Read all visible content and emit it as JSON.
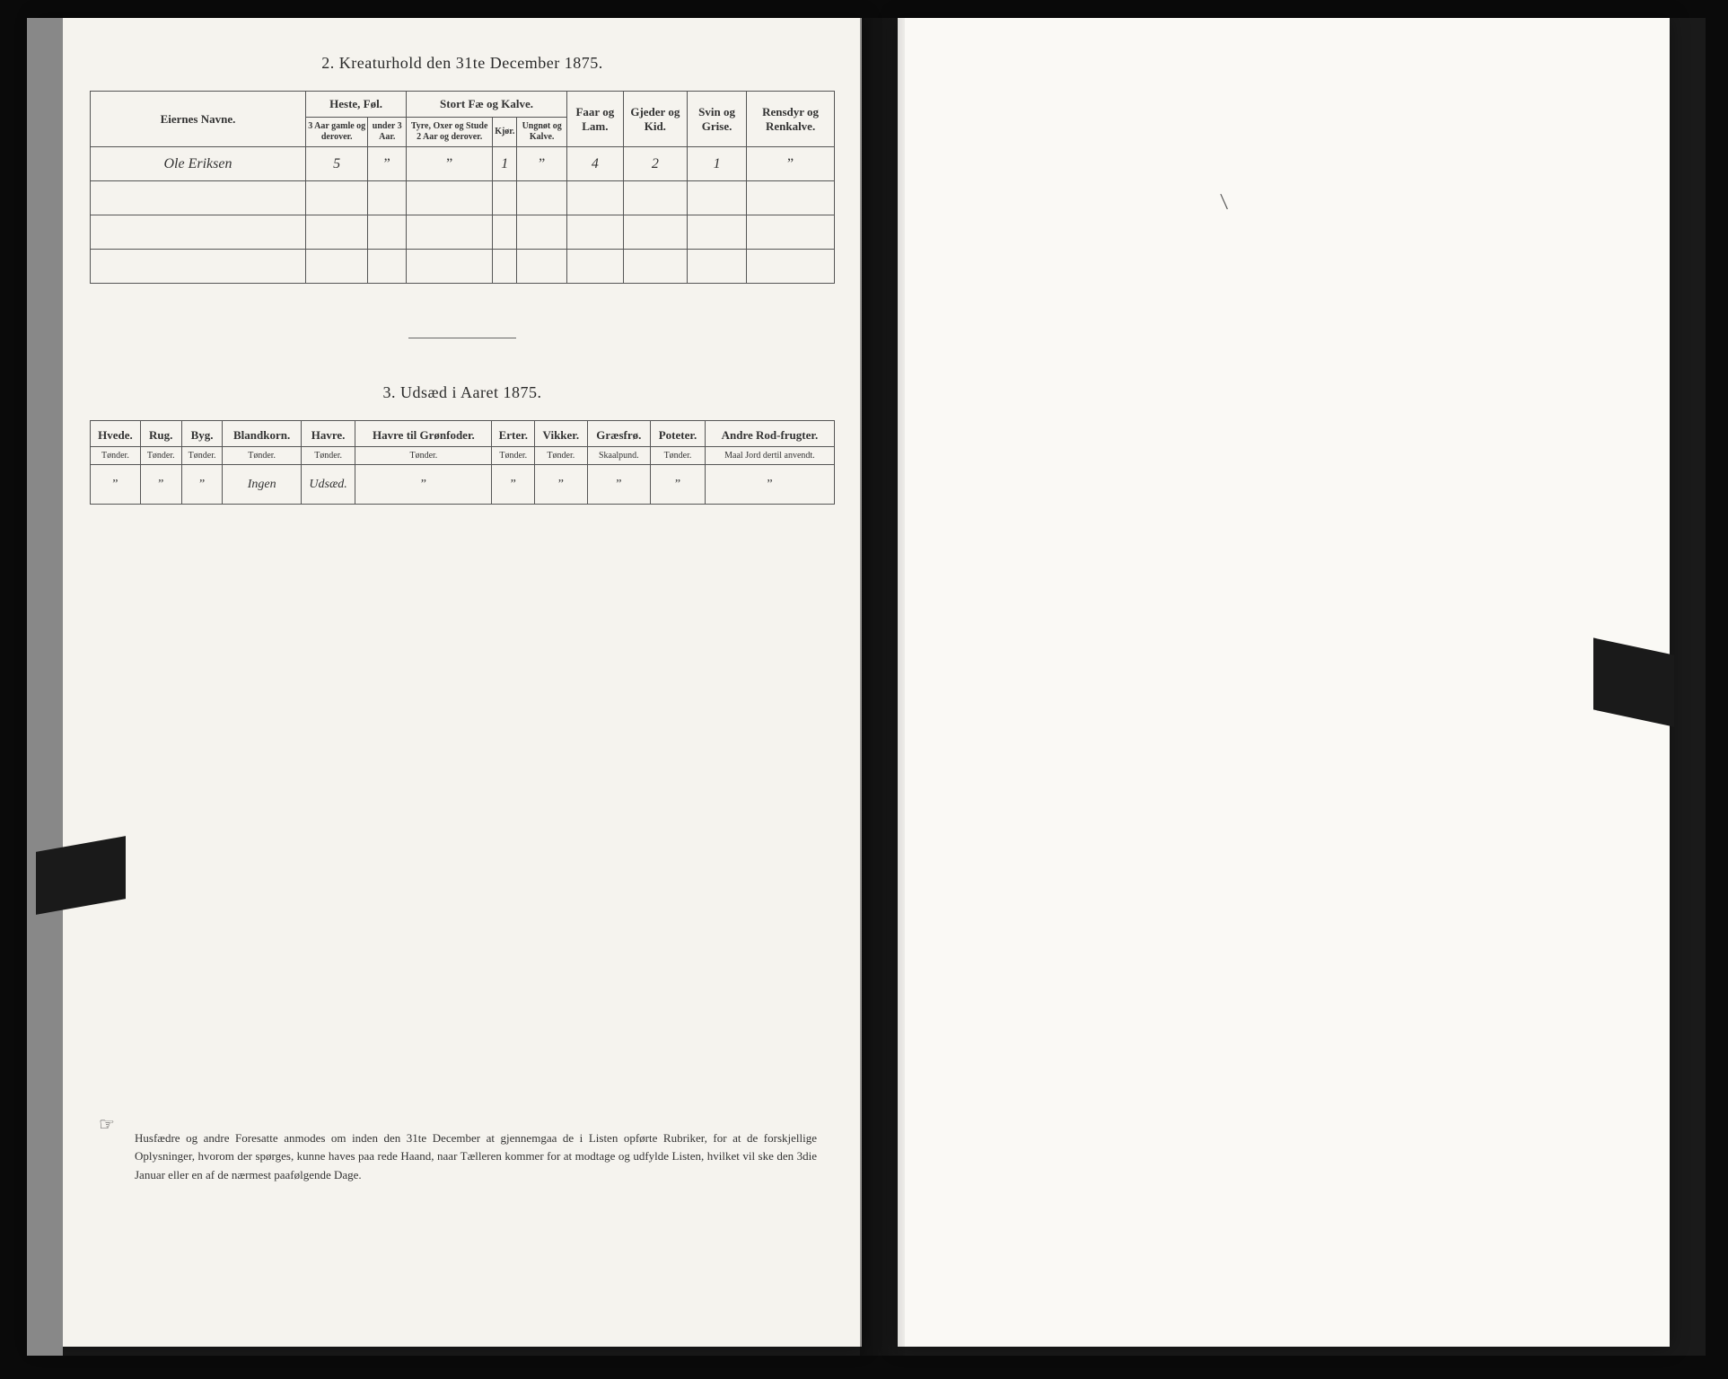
{
  "section2": {
    "title": "2.   Kreaturhold den 31te December 1875.",
    "owner_label": "Eiernes Navne.",
    "groups": {
      "heste": "Heste, Føl.",
      "stort": "Stort Fæ og Kalve.",
      "faar": "Faar og Lam.",
      "gjeder": "Gjeder og Kid.",
      "svin": "Svin og Grise.",
      "rensdyr": "Rensdyr og Renkalve."
    },
    "subheaders": {
      "heste1": "3 Aar gamle og derover.",
      "heste2": "under 3 Aar.",
      "stort1": "Tyre, Oxer og Stude 2 Aar og derover.",
      "stort2": "Kjør.",
      "stort3": "Ungnøt og Kalve."
    },
    "row": {
      "owner": "Ole Eriksen",
      "heste_3aar": "5",
      "heste_u3": "”",
      "tyre": "”",
      "kjor": "1",
      "ungnot": "”",
      "faar": "4",
      "gjeder": "2",
      "svin": "1",
      "rensdyr": "”"
    }
  },
  "section3": {
    "title": "3.   Udsæd i Aaret 1875.",
    "crops": {
      "hvede": "Hvede.",
      "rug": "Rug.",
      "byg": "Byg.",
      "blandkorn": "Blandkorn.",
      "havre": "Havre.",
      "havre_gron": "Havre til Grønfoder.",
      "erter": "Erter.",
      "vikker": "Vikker.",
      "graesfro": "Græsfrø.",
      "poteter": "Poteter.",
      "andre": "Andre Rod-frugter."
    },
    "units": {
      "tonder": "Tønder.",
      "skaalpund": "Skaalpund.",
      "maal": "Maal Jord dertil anvendt."
    },
    "row": {
      "hvede": "”",
      "rug": "”",
      "byg": "”",
      "blandkorn": "Ingen",
      "havre": "Udsæd.",
      "havre_gron": "”",
      "erter": "”",
      "vikker": "”",
      "graesfro": "”",
      "poteter": "”",
      "andre": "”"
    }
  },
  "footer": {
    "text": "Husfædre og andre Foresatte anmodes om inden den 31te December at gjennemgaa de i Listen opførte Rubriker, for at de forskjellige Oplysninger, hvorom der spørges, kunne haves paa rede Haand, naar Tælleren kommer for at modtage og udfylde Listen, hvilket vil ske den 3die Januar eller en af de nærmest paafølgende Dage."
  }
}
